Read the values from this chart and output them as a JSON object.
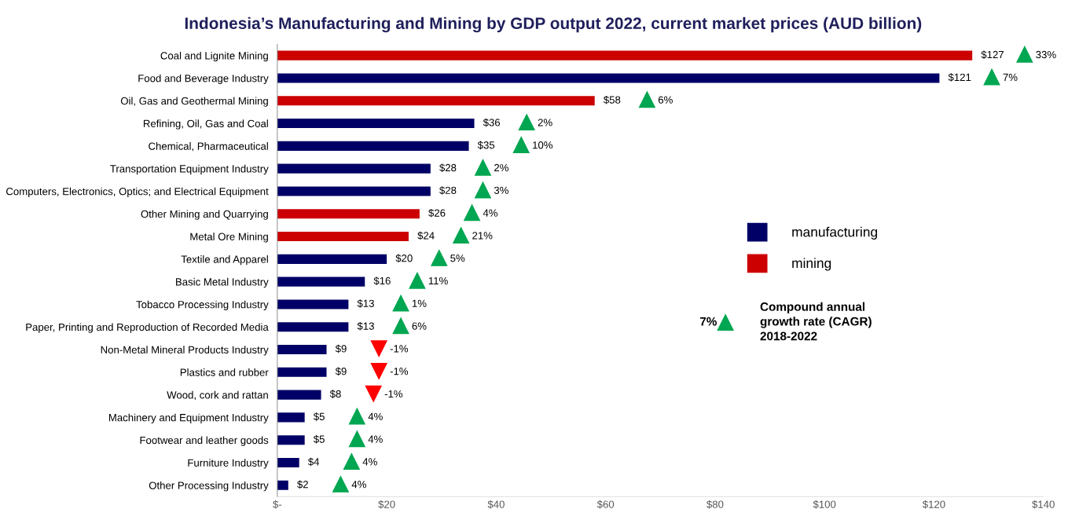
{
  "chart_data": {
    "type": "bar",
    "orientation": "horizontal",
    "title": "Indonesia’s Manufacturing and Mining by GDP output 2022, current market prices (AUD billion)",
    "categories": [
      "Coal and Lignite Mining",
      "Food and Beverage Industry",
      "Oil, Gas and Geothermal Mining",
      "Refining, Oil, Gas and Coal",
      "Chemical, Pharmaceutical",
      "Transportation Equipment Industry",
      "Computers, Electronics, Optics; and Electrical Equipment",
      "Other Mining and Quarrying",
      "Metal Ore Mining",
      "Textile and Apparel",
      "Basic Metal Industry",
      "Tobacco Processing Industry",
      "Paper, Printing and Reproduction of Recorded Media",
      "Non-Metal Mineral Products Industry",
      "Plastics and rubber",
      "Wood, cork and rattan",
      "Machinery and Equipment Industry",
      "Footwear and leather goods",
      "Furniture Industry",
      "Other Processing Industry"
    ],
    "series": [
      {
        "name": "manufacturing",
        "color": "#000066",
        "values": [
          null,
          121,
          null,
          36,
          35,
          28,
          28,
          null,
          null,
          20,
          16,
          13,
          13,
          9,
          9,
          8,
          5,
          5,
          4,
          2
        ],
        "value_labels": [
          null,
          "$121",
          null,
          "$36",
          "$35",
          "$28",
          "$28",
          null,
          null,
          "$20",
          "$16",
          "$13",
          "$13",
          "$9",
          "$9",
          "$8",
          "$5",
          "$5",
          "$4",
          "$2"
        ]
      },
      {
        "name": "mining",
        "color": "#cc0000",
        "values": [
          127,
          null,
          58,
          null,
          null,
          null,
          null,
          26,
          24,
          null,
          null,
          null,
          null,
          null,
          null,
          null,
          null,
          null,
          null,
          null
        ],
        "value_labels": [
          "$127",
          null,
          "$58",
          null,
          null,
          null,
          null,
          "$26",
          "$24",
          null,
          null,
          null,
          null,
          null,
          null,
          null,
          null,
          null,
          null,
          null
        ]
      }
    ],
    "xlim": [
      0,
      140
    ],
    "xticks": [
      {
        "value": 0,
        "label": "$-"
      },
      {
        "value": 20,
        "label": "$20"
      },
      {
        "value": 40,
        "label": "$40"
      },
      {
        "value": 60,
        "label": "$60"
      },
      {
        "value": 80,
        "label": "$80"
      },
      {
        "value": 100,
        "label": "$100"
      },
      {
        "value": 120,
        "label": "$120"
      },
      {
        "value": 140,
        "label": "$140"
      }
    ],
    "legend": "right",
    "grid": false,
    "annotations": [
      "33%",
      "7%",
      "6%",
      "2%",
      "10%",
      "2%",
      "3%",
      "4%",
      "21%",
      "5%",
      "11%",
      "1%",
      "6%",
      "-1%",
      "-1%",
      "-1%",
      "4%",
      "4%",
      "4%",
      "4%",
      "7%",
      "Compound annual\ngrowth rate (CAGR)\n2018-2022"
    ]
  }
}
